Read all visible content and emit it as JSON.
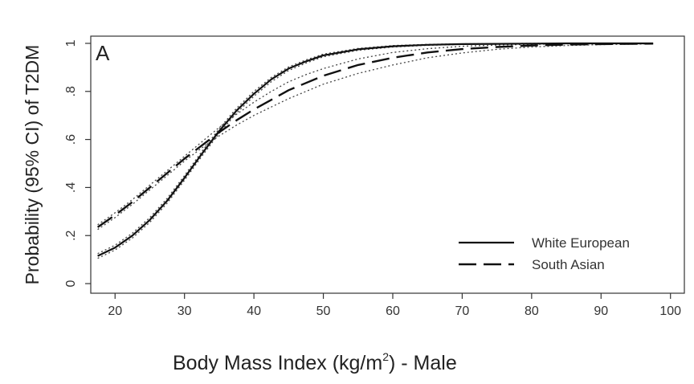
{
  "chart_data": {
    "type": "line",
    "panel_label": "A",
    "xlabel": "Body Mass Index (kg/m",
    "xlabel_superscript": "2",
    "xlabel_suffix": ")  -  Male",
    "ylabel": "Probability (95% CI) of T2DM",
    "xlim": [
      16.5,
      102
    ],
    "ylim": [
      -0.04,
      1.03
    ],
    "x_ticks": [
      20,
      30,
      40,
      50,
      60,
      70,
      80,
      90,
      100
    ],
    "x_tick_labels": [
      "20",
      "30",
      "40",
      "50",
      "60",
      "70",
      "80",
      "90",
      "100"
    ],
    "y_ticks": [
      0,
      0.2,
      0.4,
      0.6,
      0.8,
      1
    ],
    "y_tick_labels": [
      "0",
      ".2",
      ".4",
      ".6",
      ".8",
      "1"
    ],
    "grid": false,
    "legend_position": "bottom-right",
    "series": [
      {
        "name": "White European",
        "style": "solid",
        "x": [
          17.5,
          20,
          22.5,
          25,
          27.5,
          30,
          32.5,
          35,
          37.5,
          40,
          42.5,
          45,
          47.5,
          50,
          55,
          60,
          65,
          70,
          75,
          80,
          85,
          90,
          95,
          97.5
        ],
        "y": [
          0.115,
          0.15,
          0.2,
          0.265,
          0.345,
          0.44,
          0.54,
          0.635,
          0.72,
          0.79,
          0.85,
          0.895,
          0.925,
          0.95,
          0.975,
          0.988,
          0.994,
          0.997,
          0.998,
          0.999,
          1.0,
          1.0,
          1.0,
          1.0
        ]
      },
      {
        "name": "South Asian",
        "style": "dashed",
        "x": [
          17.5,
          20,
          22.5,
          25,
          27.5,
          30,
          32.5,
          35,
          37.5,
          40,
          42.5,
          45,
          47.5,
          50,
          55,
          60,
          65,
          70,
          75,
          80,
          85,
          90,
          95,
          97.5
        ],
        "y": [
          0.235,
          0.285,
          0.34,
          0.4,
          0.46,
          0.52,
          0.575,
          0.63,
          0.68,
          0.725,
          0.765,
          0.805,
          0.835,
          0.865,
          0.91,
          0.94,
          0.962,
          0.976,
          0.985,
          0.991,
          0.995,
          0.997,
          0.998,
          0.999
        ]
      }
    ],
    "ci_bands": [
      {
        "series": "White European",
        "x": [
          17.5,
          20,
          22.5,
          25,
          27.5,
          30,
          32.5,
          35,
          37.5,
          40,
          42.5,
          45,
          47.5,
          50,
          55,
          60,
          65,
          70,
          75,
          80,
          85,
          90,
          95,
          97.5
        ],
        "lower": [
          0.105,
          0.14,
          0.19,
          0.255,
          0.335,
          0.43,
          0.53,
          0.625,
          0.71,
          0.78,
          0.84,
          0.887,
          0.918,
          0.944,
          0.971,
          0.985,
          0.992,
          0.996,
          0.998,
          0.999,
          0.999,
          1.0,
          1.0,
          1.0
        ],
        "upper": [
          0.125,
          0.16,
          0.21,
          0.275,
          0.355,
          0.45,
          0.55,
          0.645,
          0.73,
          0.8,
          0.858,
          0.902,
          0.931,
          0.955,
          0.979,
          0.991,
          0.996,
          0.998,
          0.999,
          1.0,
          1.0,
          1.0,
          1.0,
          1.0
        ]
      },
      {
        "series": "South Asian",
        "x": [
          17.5,
          20,
          22.5,
          25,
          27.5,
          30,
          32.5,
          35,
          37.5,
          40,
          42.5,
          45,
          47.5,
          50,
          55,
          60,
          65,
          70,
          75,
          80,
          85,
          90,
          95,
          97.5
        ],
        "lower": [
          0.225,
          0.275,
          0.33,
          0.39,
          0.45,
          0.51,
          0.565,
          0.615,
          0.66,
          0.7,
          0.735,
          0.77,
          0.8,
          0.83,
          0.875,
          0.91,
          0.94,
          0.96,
          0.975,
          0.985,
          0.991,
          0.995,
          0.997,
          0.998
        ],
        "upper": [
          0.245,
          0.295,
          0.35,
          0.41,
          0.47,
          0.53,
          0.59,
          0.65,
          0.705,
          0.755,
          0.8,
          0.84,
          0.87,
          0.895,
          0.935,
          0.962,
          0.978,
          0.988,
          0.993,
          0.996,
          0.998,
          0.999,
          1.0,
          1.0
        ]
      }
    ]
  }
}
